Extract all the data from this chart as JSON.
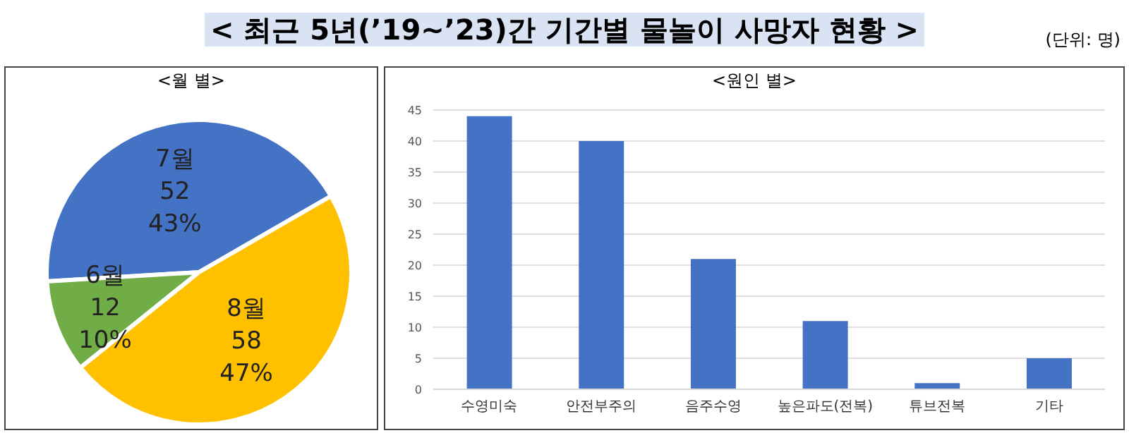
{
  "chart_data": [
    {
      "type": "pie",
      "title": "< 최근 5년(’19~’23)간 기간별 물놀이 사망자 현황 >",
      "subtitle": "<월 별>",
      "annotations": [
        "(단위: 명)"
      ],
      "categories": [
        "7월",
        "6월",
        "8월"
      ],
      "values": [
        52,
        12,
        58
      ],
      "colors": [
        "#4472c4",
        "#70ad47",
        "#ffc000"
      ],
      "value_labels": [
        "52\n43%",
        "12\n10%",
        "58\n47%"
      ]
    },
    {
      "type": "bar",
      "title": "<원인 별>",
      "categories": [
        "수영미숙",
        "안전부주의",
        "음주수영",
        "높은파도(전복)",
        "튜브전복",
        "기타"
      ],
      "values": [
        44,
        40,
        21,
        11,
        1,
        5
      ],
      "color": "#4472c4",
      "ylim": [
        0,
        45
      ],
      "yticks": [
        0,
        5,
        10,
        15,
        20,
        25,
        30,
        35,
        40,
        45
      ],
      "grid": "y"
    }
  ]
}
